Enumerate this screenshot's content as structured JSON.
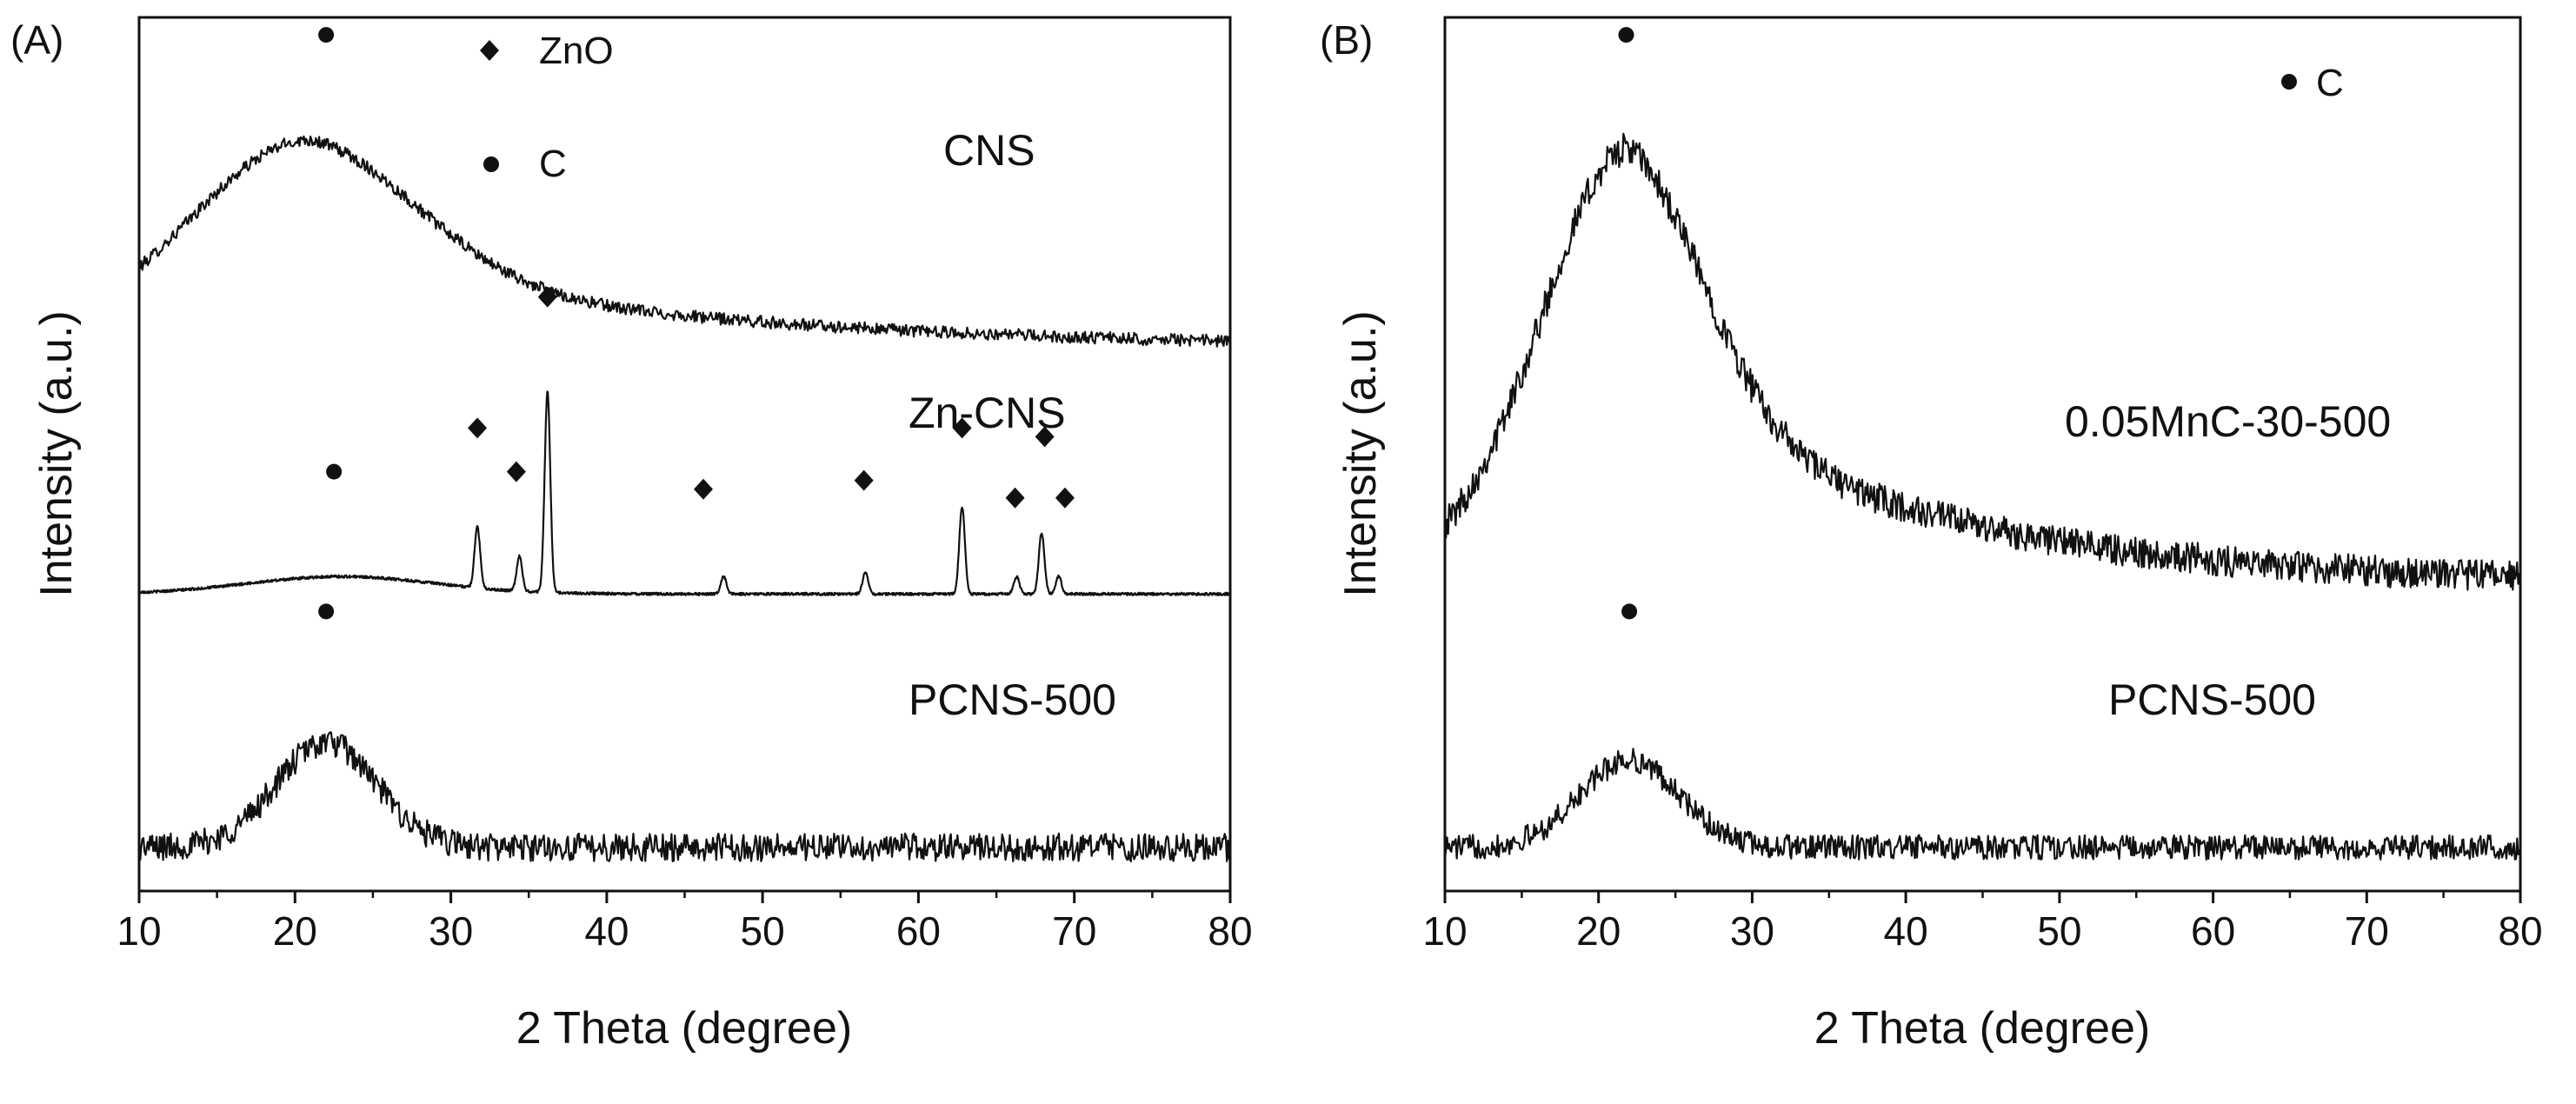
{
  "chart_data": [
    {
      "panel": "(A)",
      "type": "line",
      "xlabel": "2 Theta (degree)",
      "ylabel": "Intensity (a.u.)",
      "xlim": [
        10,
        80
      ],
      "xticks": [
        10,
        20,
        30,
        40,
        50,
        60,
        70,
        80
      ],
      "xtick_labels": [
        "10",
        "20",
        "30",
        "40",
        "50",
        "60",
        "70",
        "80"
      ],
      "ylim": [
        0,
        100
      ],
      "grid": false,
      "legend": {
        "placement": "top-center",
        "entries": [
          {
            "symbol": "diamond",
            "label": "ZnO"
          },
          {
            "symbol": "dot",
            "label": "C"
          }
        ]
      },
      "series": [
        {
          "name": "CNS",
          "label": "CNS",
          "kind": "amorphous",
          "baseline": 62,
          "peak_center": 21,
          "peak_width": 7,
          "peak_height": 14,
          "tail_height": 10,
          "tail_decay": 25,
          "noise": 0.7
        },
        {
          "name": "Zn-CNS",
          "label": "Zn-CNS",
          "kind": "crystalline",
          "baseline": 34,
          "hump_center": 23,
          "hump_height": 2,
          "hump_width": 6,
          "noise": 0.15,
          "peaks": [
            {
              "pos": 31.7,
              "height": 7
            },
            {
              "pos": 34.4,
              "height": 4
            },
            {
              "pos": 36.2,
              "height": 23
            },
            {
              "pos": 47.5,
              "height": 2
            },
            {
              "pos": 56.6,
              "height": 2.5
            },
            {
              "pos": 62.8,
              "height": 10
            },
            {
              "pos": 66.3,
              "height": 2
            },
            {
              "pos": 67.9,
              "height": 7
            },
            {
              "pos": 69.0,
              "height": 2
            }
          ]
        },
        {
          "name": "PCNS-500",
          "label": "PCNS-500",
          "kind": "amorphous",
          "baseline": 5,
          "peak_center": 22,
          "peak_width": 3.2,
          "peak_height": 12,
          "tail_height": 0,
          "tail_decay": 20,
          "noise": 1.6
        }
      ],
      "markers": [
        {
          "symbol": "dot",
          "phase": "C",
          "x": 22.0,
          "y": 98
        },
        {
          "symbol": "dot",
          "phase": "C",
          "x": 22.5,
          "y": 48
        },
        {
          "symbol": "diamond",
          "phase": "ZnO",
          "x": 31.7,
          "y": 53
        },
        {
          "symbol": "diamond",
          "phase": "ZnO",
          "x": 34.2,
          "y": 48
        },
        {
          "symbol": "diamond",
          "phase": "ZnO",
          "x": 36.2,
          "y": 68
        },
        {
          "symbol": "diamond",
          "phase": "ZnO",
          "x": 46.2,
          "y": 46
        },
        {
          "symbol": "diamond",
          "phase": "ZnO",
          "x": 56.5,
          "y": 47
        },
        {
          "symbol": "diamond",
          "phase": "ZnO",
          "x": 62.8,
          "y": 53
        },
        {
          "symbol": "diamond",
          "phase": "ZnO",
          "x": 66.2,
          "y": 45
        },
        {
          "symbol": "diamond",
          "phase": "ZnO",
          "x": 68.1,
          "y": 52
        },
        {
          "symbol": "diamond",
          "phase": "ZnO",
          "x": 69.4,
          "y": 45
        },
        {
          "symbol": "dot",
          "phase": "C",
          "x": 22.0,
          "y": 32
        }
      ]
    },
    {
      "panel": "(B)",
      "type": "line",
      "xlabel": "2 Theta (degree)",
      "ylabel": "Intensity (a.u.)",
      "xlim": [
        10,
        80
      ],
      "xticks": [
        10,
        20,
        30,
        40,
        50,
        60,
        70,
        80
      ],
      "xtick_labels": [
        "10",
        "20",
        "30",
        "40",
        "50",
        "60",
        "70",
        "80"
      ],
      "ylim": [
        0,
        100
      ],
      "grid": false,
      "legend": {
        "placement": "top-right",
        "entries": [
          {
            "symbol": "dot",
            "label": "C"
          }
        ]
      },
      "series": [
        {
          "name": "0.05MnC-30-500",
          "label": "0.05MnC-30-500",
          "kind": "amorphous",
          "baseline": 35,
          "peak_center": 22,
          "peak_width": 5,
          "peak_height": 26,
          "tail_height": 24,
          "tail_decay": 18,
          "noise": 1.8
        },
        {
          "name": "PCNS-500",
          "label": "PCNS-500",
          "kind": "amorphous",
          "baseline": 5,
          "peak_center": 22,
          "peak_width": 3.2,
          "peak_height": 10,
          "tail_height": 0,
          "tail_decay": 20,
          "noise": 1.4
        }
      ],
      "markers": [
        {
          "symbol": "dot",
          "phase": "C",
          "x": 21.8,
          "y": 98
        },
        {
          "symbol": "dot",
          "phase": "C",
          "x": 22.0,
          "y": 32
        }
      ]
    }
  ]
}
